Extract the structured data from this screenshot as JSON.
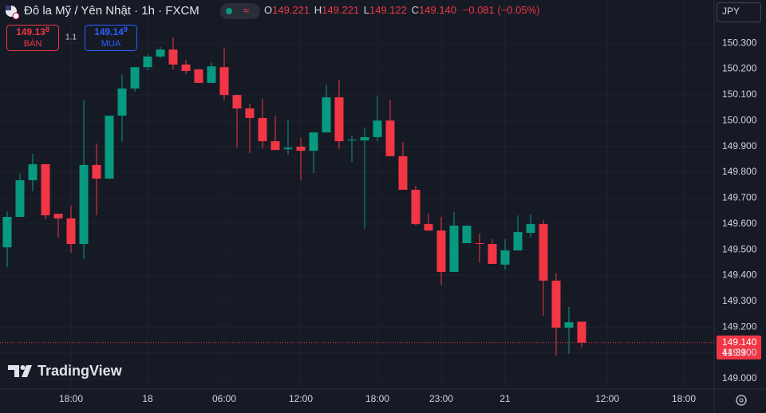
{
  "header": {
    "symbol": "Đô la Mỹ / Yên Nhật · 1h · FXCM",
    "status": "≈",
    "ohlc": [
      {
        "key": "O",
        "value": "149.221"
      },
      {
        "key": "H",
        "value": "149.221"
      },
      {
        "key": "L",
        "value": "149.122"
      },
      {
        "key": "C",
        "value": "149.140"
      }
    ],
    "change": "−0.081 (−0.05%)"
  },
  "sell": {
    "price": "149.13",
    "pip": "8",
    "label": "BÁN"
  },
  "spread": "1.1",
  "buy": {
    "price": "149.14",
    "pip": "9",
    "label": "MUA"
  },
  "currency": "JPY",
  "logo": "TradingView",
  "last_price": {
    "label": "149.140",
    "countdown": "41:39"
  },
  "chart_data": {
    "type": "candlestick",
    "grid": true,
    "up_color": "#089981",
    "down_color": "#f23645",
    "x": [
      0,
      1,
      2,
      3,
      4,
      5,
      6,
      7,
      8,
      9,
      10,
      11,
      12,
      13,
      14,
      15,
      16,
      17,
      18,
      19,
      20,
      21,
      22,
      23,
      24,
      25,
      26,
      27,
      28,
      29,
      30,
      31,
      32,
      33,
      34,
      35,
      36,
      37,
      38,
      39,
      40,
      41,
      42,
      43,
      44,
      45
    ],
    "open": [
      149.509,
      149.627,
      149.769,
      149.831,
      149.639,
      149.621,
      149.522,
      149.828,
      149.775,
      150.019,
      150.124,
      150.207,
      150.248,
      150.275,
      150.217,
      150.198,
      150.146,
      150.207,
      150.099,
      150.047,
      150.01,
      149.92,
      149.889,
      149.899,
      149.883,
      149.954,
      150.09,
      149.923,
      149.923,
      149.936,
      150.0,
      149.862,
      149.732,
      149.599,
      149.574,
      149.414,
      149.525,
      149.525,
      149.522,
      149.442,
      149.497,
      149.565,
      149.599,
      149.38,
      149.198,
      149.221
    ],
    "high": [
      149.648,
      149.794,
      149.871,
      149.831,
      149.639,
      149.67,
      150.078,
      149.911,
      150.019,
      150.177,
      150.207,
      150.257,
      150.285,
      150.322,
      150.235,
      150.198,
      150.226,
      150.281,
      150.099,
      150.065,
      150.084,
      150.019,
      150.004,
      149.933,
      149.954,
      150.139,
      150.158,
      149.942,
      149.973,
      150.096,
      150.081,
      149.917,
      149.747,
      149.639,
      149.627,
      149.645,
      149.593,
      149.562,
      149.54,
      149.54,
      149.633,
      149.636,
      149.615,
      149.408,
      149.278,
      149.221
    ],
    "low": [
      149.432,
      149.627,
      149.726,
      149.618,
      149.547,
      149.488,
      149.463,
      149.633,
      149.775,
      149.92,
      150.112,
      150.195,
      150.241,
      150.198,
      150.18,
      150.146,
      150.146,
      150.081,
      149.895,
      149.874,
      149.892,
      149.886,
      149.868,
      149.769,
      149.797,
      149.954,
      149.892,
      149.84,
      149.581,
      149.92,
      149.862,
      149.732,
      149.593,
      149.574,
      149.364,
      149.414,
      149.525,
      149.451,
      149.445,
      149.423,
      149.497,
      149.547,
      149.244,
      149.09,
      149.096,
      149.122
    ],
    "close": [
      149.627,
      149.769,
      149.831,
      149.633,
      149.621,
      149.522,
      149.828,
      149.775,
      150.019,
      150.124,
      150.207,
      150.248,
      150.275,
      150.217,
      150.192,
      150.146,
      150.21,
      150.099,
      150.047,
      150.01,
      149.92,
      149.886,
      149.895,
      149.883,
      149.954,
      150.09,
      149.92,
      149.926,
      149.936,
      150.0,
      149.862,
      149.732,
      149.599,
      149.574,
      149.414,
      149.593,
      149.593,
      149.522,
      149.445,
      149.497,
      149.568,
      149.599,
      149.38,
      149.198,
      149.219,
      149.14
    ],
    "xlim": [
      -0.5625,
      55.375
    ],
    "xticks": [
      {
        "value": 5,
        "label": "18:00"
      },
      {
        "value": 11,
        "label": "18"
      },
      {
        "value": 17,
        "label": "06:00"
      },
      {
        "value": 23,
        "label": "12:00"
      },
      {
        "value": 29,
        "label": "18:00"
      },
      {
        "value": 34,
        "label": "23:00"
      },
      {
        "value": 39,
        "label": "21"
      },
      {
        "value": 47,
        "label": "12:00"
      },
      {
        "value": 53,
        "label": "18:00"
      }
    ],
    "ylim": [
      148.96,
      150.467
    ],
    "yticks": [
      {
        "value": 149.0,
        "label": "149.000"
      },
      {
        "value": 149.1,
        "label": "149.100"
      },
      {
        "value": 149.2,
        "label": "149.200"
      },
      {
        "value": 149.3,
        "label": "149.300"
      },
      {
        "value": 149.4,
        "label": "149.400"
      },
      {
        "value": 149.5,
        "label": "149.500"
      },
      {
        "value": 149.6,
        "label": "149.600"
      },
      {
        "value": 149.7,
        "label": "149.700"
      },
      {
        "value": 149.8,
        "label": "149.800"
      },
      {
        "value": 149.9,
        "label": "149.900"
      },
      {
        "value": 150.0,
        "label": "150.000"
      },
      {
        "value": 150.1,
        "label": "150.100"
      },
      {
        "value": 150.2,
        "label": "150.200"
      },
      {
        "value": 150.3,
        "label": "150.300"
      }
    ]
  }
}
